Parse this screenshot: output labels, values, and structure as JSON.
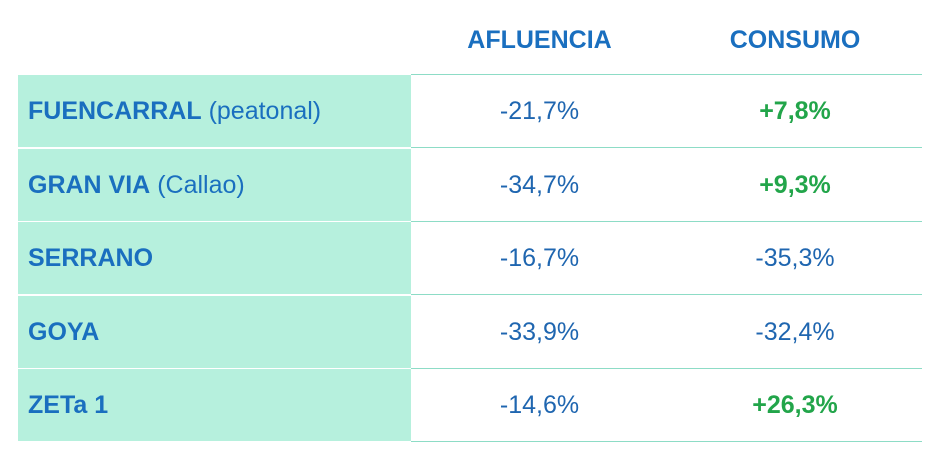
{
  "table": {
    "columns": [
      "AFLUENCIA",
      "CONSUMO"
    ],
    "rows": [
      {
        "name": "FUENCARRAL",
        "note": "(peatonal)",
        "values": [
          "-21,7%",
          "+7,8%"
        ]
      },
      {
        "name": "GRAN VIA",
        "note": "(Callao)",
        "values": [
          "-34,7%",
          "+9,3%"
        ]
      },
      {
        "name": "SERRANO",
        "values": [
          "-16,7%",
          "-35,3%"
        ]
      },
      {
        "name": "GOYA",
        "values": [
          "-33,9%",
          "-32,4%"
        ]
      },
      {
        "name": "ZETa 1",
        "values": [
          "-14,6%",
          "+26,3%"
        ]
      }
    ]
  }
}
